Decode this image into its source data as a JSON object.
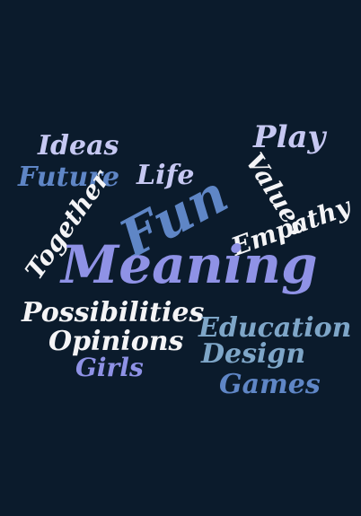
{
  "colors": {
    "background": "#0b1b2c",
    "white": "#f4f4f6",
    "lavender": "#c6c8f2",
    "periwinkle": "#8f92e6",
    "blue": "#5f86c6",
    "steel": "#7ea6c8"
  },
  "words": {
    "ideas": "Ideas",
    "future": "Future",
    "life": "Life",
    "fun": "Fun",
    "play": "Play",
    "values": "Values",
    "empathy": "Empathy",
    "together": "Together",
    "meaning": "Meaning",
    "possibilities": "Possibilities",
    "opinions": "Opinions",
    "girls": "Girls",
    "education": "Education",
    "design": "Design",
    "games": "Games"
  }
}
